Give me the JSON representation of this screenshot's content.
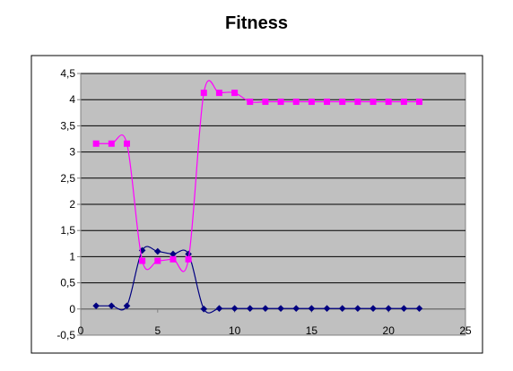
{
  "chart_data": {
    "type": "line",
    "title": "Fitness",
    "xlabel": "",
    "ylabel": "",
    "xlim": [
      0,
      25
    ],
    "ylim": [
      -0.5,
      4.5
    ],
    "x_ticks": [
      0,
      5,
      10,
      15,
      20,
      25
    ],
    "x_tick_labels": [
      "0",
      "5",
      "10",
      "15",
      "20",
      "25"
    ],
    "y_ticks": [
      -0.5,
      0,
      0.5,
      1,
      1.5,
      2,
      2.5,
      3,
      3.5,
      4,
      4.5
    ],
    "y_tick_labels": [
      "-0,5",
      "0",
      "0,5",
      "1",
      "1,5",
      "2",
      "2,5",
      "3",
      "3,5",
      "4",
      "4,5"
    ],
    "grid": {
      "horizontal": true,
      "vertical": false
    },
    "plot_background": "#C0C0C0",
    "legend": "none",
    "series": [
      {
        "color": "#000080",
        "marker": "diamond",
        "smoothed": true,
        "x": [
          1,
          2,
          3,
          4,
          5,
          6,
          7,
          8,
          9,
          10,
          11,
          12,
          13,
          14,
          15,
          16,
          17,
          18,
          19,
          20,
          21,
          22
        ],
        "y": [
          0.06,
          0.06,
          0.06,
          1.12,
          1.1,
          1.05,
          1.05,
          0.0,
          0.01,
          0.01,
          0.01,
          0.01,
          0.01,
          0.01,
          0.01,
          0.01,
          0.01,
          0.01,
          0.01,
          0.01,
          0.01,
          0.01
        ]
      },
      {
        "color": "#FF00FF",
        "marker": "square",
        "smoothed": true,
        "x": [
          1,
          2,
          3,
          4,
          5,
          6,
          7,
          8,
          9,
          10,
          11,
          12,
          13,
          14,
          15,
          16,
          17,
          18,
          19,
          20,
          21,
          22
        ],
        "y": [
          3.16,
          3.16,
          3.16,
          0.92,
          0.92,
          0.95,
          0.95,
          4.13,
          4.13,
          4.13,
          3.96,
          3.96,
          3.96,
          3.96,
          3.96,
          3.96,
          3.96,
          3.96,
          3.96,
          3.96,
          3.96,
          3.96
        ]
      }
    ]
  }
}
